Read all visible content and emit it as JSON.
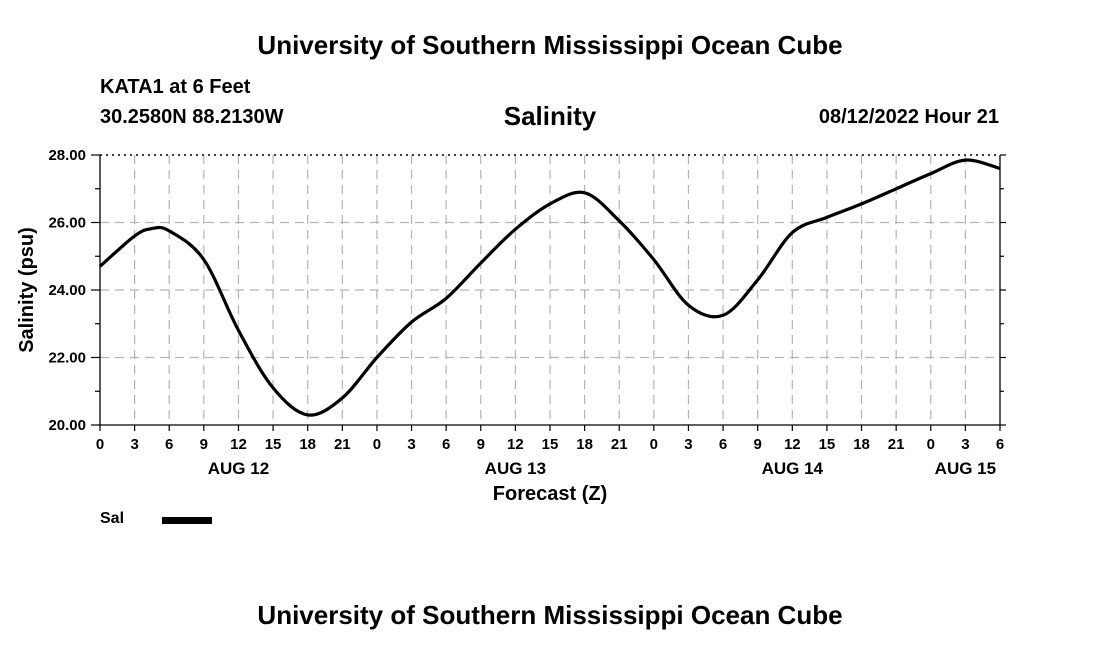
{
  "header": {
    "title": "University of Southern Mississippi Ocean Cube",
    "station": "KATA1 at 6 Feet",
    "coordinates": "30.2580N  88.2130W",
    "valid_time": "08/12/2022 Hour 21"
  },
  "footer": {
    "title": "University of Southern Mississippi Ocean Cube"
  },
  "chart_data": {
    "type": "line",
    "title": "Salinity",
    "xlabel": "Forecast (Z)",
    "ylabel": "Salinity (psu)",
    "xlim": [
      0,
      78
    ],
    "ylim": [
      20,
      28
    ],
    "grid": true,
    "y_ticks": [
      "20.00",
      "22.00",
      "24.00",
      "26.00",
      "28.00"
    ],
    "x_tick_hours": [
      0,
      3,
      6,
      9,
      12,
      15,
      18,
      21,
      24,
      27,
      30,
      33,
      36,
      39,
      42,
      45,
      48,
      51,
      54,
      57,
      60,
      63,
      66,
      69,
      72,
      75,
      78
    ],
    "x_tick_labels": [
      "0",
      "3",
      "6",
      "9",
      "12",
      "15",
      "18",
      "21",
      "0",
      "3",
      "6",
      "9",
      "12",
      "15",
      "18",
      "21",
      "0",
      "3",
      "6",
      "9",
      "12",
      "15",
      "18",
      "21",
      "0",
      "3",
      "6"
    ],
    "date_labels": [
      {
        "hour": 12,
        "label": "AUG 12"
      },
      {
        "hour": 36,
        "label": "AUG 13"
      },
      {
        "hour": 60,
        "label": "AUG 14"
      },
      {
        "hour": 75,
        "label": "AUG 15"
      }
    ],
    "legend": [
      {
        "name": "Sal",
        "color": "#000000"
      }
    ],
    "legend_position": "bottom-left",
    "series": [
      {
        "name": "Sal",
        "color": "#000000",
        "x": [
          0,
          3,
          4.5,
          6,
          9,
          12,
          15,
          18,
          21,
          24,
          27,
          30,
          33,
          36,
          39,
          42,
          45,
          48,
          51,
          54,
          57,
          60,
          63,
          66,
          69,
          72,
          75,
          78
        ],
        "y": [
          24.7,
          25.6,
          25.82,
          25.75,
          24.9,
          22.8,
          21.1,
          20.3,
          20.8,
          22.0,
          23.05,
          23.75,
          24.8,
          25.8,
          26.55,
          26.88,
          26.05,
          24.9,
          23.55,
          23.25,
          24.3,
          25.7,
          26.15,
          26.55,
          27.0,
          27.45,
          27.85,
          27.6
        ]
      }
    ]
  }
}
